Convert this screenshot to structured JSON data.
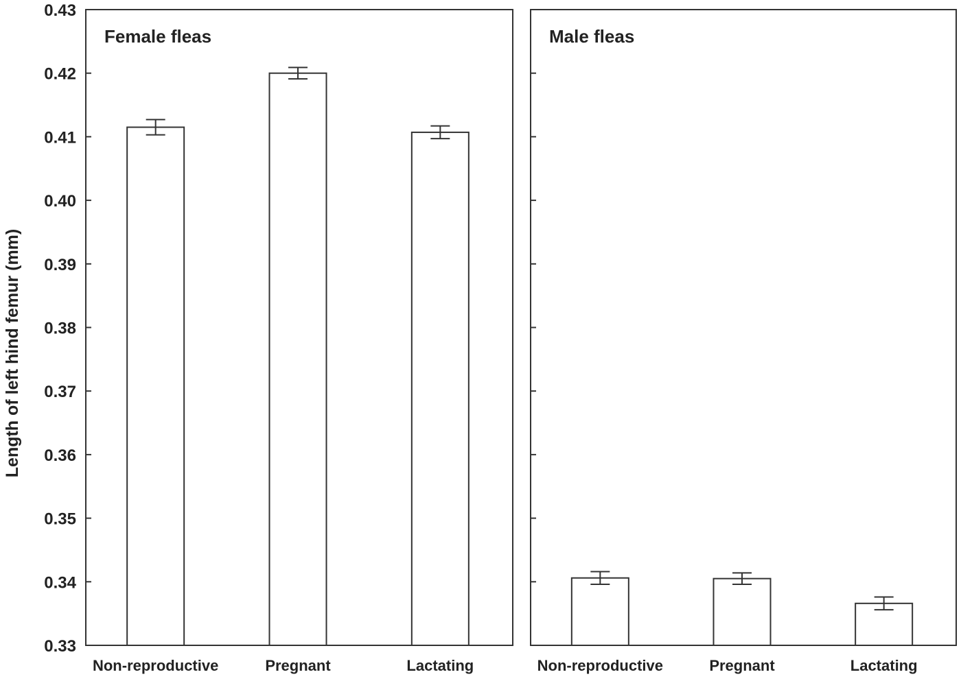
{
  "chart_data": {
    "type": "bar",
    "ylabel": "Length of left hind femur (mm)",
    "ylim": [
      0.33,
      0.43
    ],
    "yticks": [
      "0.33",
      "0.34",
      "0.35",
      "0.36",
      "0.37",
      "0.38",
      "0.39",
      "0.40",
      "0.41",
      "0.42",
      "0.43"
    ],
    "grid": false,
    "error_bars": true,
    "colors": {
      "bar_fill": "#ffffff",
      "stroke": "#333333",
      "text": "#222222"
    },
    "panels": [
      {
        "title": "Female fleas",
        "categories": [
          "Non-reproductive",
          "Pregnant",
          "Lactating"
        ],
        "values": [
          0.4115,
          0.42,
          0.4107
        ],
        "errors": [
          0.0012,
          0.0009,
          0.001
        ]
      },
      {
        "title": "Male fleas",
        "categories": [
          "Non-reproductive",
          "Pregnant",
          "Lactating"
        ],
        "values": [
          0.3406,
          0.3405,
          0.3366
        ],
        "errors": [
          0.001,
          0.0009,
          0.001
        ]
      }
    ]
  }
}
